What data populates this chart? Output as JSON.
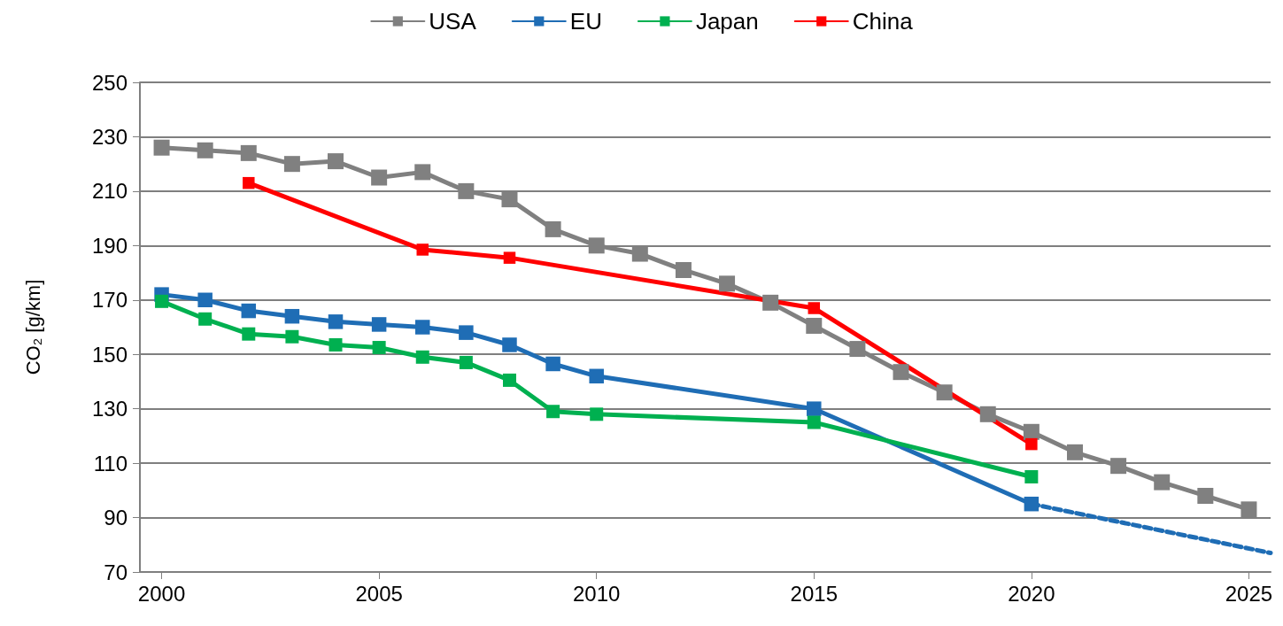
{
  "chart_data": {
    "type": "line",
    "ylabel": "CO₂ [g/km]",
    "xlim": [
      1999.5,
      2025.5
    ],
    "xticks": [
      2000,
      2005,
      2010,
      2015,
      2020,
      2025
    ],
    "ylim": [
      70,
      250
    ],
    "yticks": [
      70,
      90,
      110,
      130,
      150,
      170,
      190,
      210,
      230,
      250
    ],
    "grid": "y",
    "legend": "top",
    "marker": "square",
    "line_style": "solid",
    "series": [
      {
        "name": "USA",
        "color": "#808080",
        "x": [
          2000,
          2001,
          2002,
          2003,
          2004,
          2005,
          2006,
          2007,
          2008,
          2009,
          2010,
          2011,
          2012,
          2013,
          2014,
          2015,
          2016,
          2017,
          2018,
          2019,
          2020,
          2021,
          2022,
          2023,
          2024,
          2025
        ],
        "values": [
          226,
          225,
          224,
          220,
          221,
          215,
          217,
          210,
          207,
          196,
          190,
          187,
          181,
          176,
          169,
          160.5,
          152,
          143.5,
          136,
          128,
          121.5,
          114,
          109,
          103,
          98,
          93
        ]
      },
      {
        "name": "EU",
        "color": "#1f6db5",
        "x": [
          2000,
          2001,
          2002,
          2003,
          2004,
          2005,
          2006,
          2007,
          2008,
          2009,
          2010,
          2015,
          2020
        ],
        "values": [
          172,
          170,
          166,
          164,
          162,
          161,
          160,
          158,
          153.5,
          146.5,
          142,
          130,
          95
        ]
      },
      {
        "name": "Japan",
        "color": "#00b050",
        "x": [
          2000,
          2001,
          2002,
          2003,
          2004,
          2005,
          2006,
          2007,
          2008,
          2009,
          2010,
          2015,
          2020
        ],
        "values": [
          169.5,
          163,
          157.5,
          156.5,
          153.5,
          152.5,
          149,
          147,
          140.5,
          129,
          128,
          125,
          105
        ]
      },
      {
        "name": "China",
        "color": "#ff0000",
        "x": [
          2002,
          2006,
          2008,
          2015,
          2020
        ],
        "values": [
          213,
          188.5,
          185.5,
          167,
          117
        ]
      },
      {
        "color": "#1f6db5",
        "line_style": "dashed",
        "marker": "none",
        "x": [
          2020,
          2025.5
        ],
        "values": [
          95,
          77
        ]
      }
    ]
  }
}
